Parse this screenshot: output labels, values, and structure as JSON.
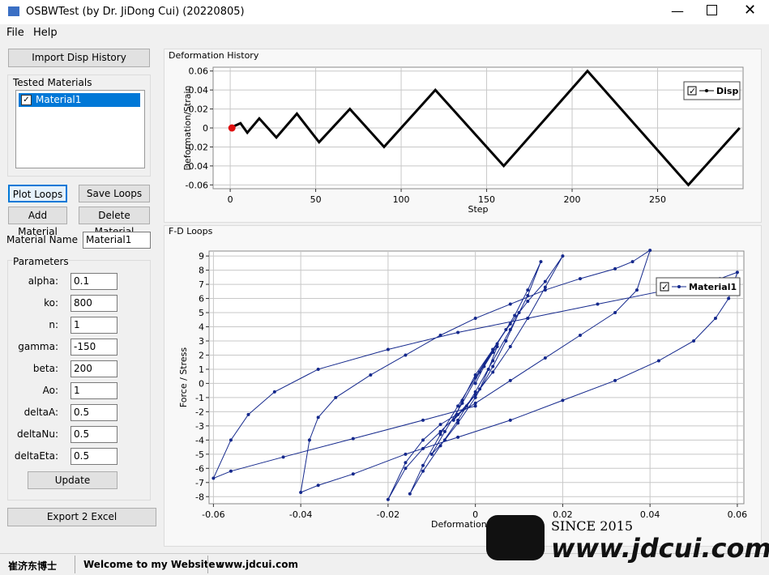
{
  "window": {
    "title": "OSBWTest (by Dr. JiDong Cui) (20220805)"
  },
  "menu": [
    "File",
    "Help"
  ],
  "left": {
    "import_button": "Import Disp History",
    "tested_materials": {
      "title": "Tested Materials",
      "items": [
        "Material1"
      ]
    },
    "buttons": [
      "Plot Loops",
      "Save Loops",
      "Add Material",
      "Delete Material"
    ],
    "material_name": {
      "label": "Material Name",
      "value": "Material1"
    },
    "parameters": {
      "title": "Parameters",
      "fields": [
        {
          "label": "alpha:",
          "value": "0.1"
        },
        {
          "label": "ko:",
          "value": "800"
        },
        {
          "label": "n:",
          "value": "1"
        },
        {
          "label": "gamma:",
          "value": "-150"
        },
        {
          "label": "beta:",
          "value": "200"
        },
        {
          "label": "Ao:",
          "value": "1"
        },
        {
          "label": "deltaA:",
          "value": "0.5"
        },
        {
          "label": "deltaNu:",
          "value": "0.5"
        },
        {
          "label": "deltaEta:",
          "value": "0.5"
        }
      ]
    },
    "update_button": "Update",
    "export_button": "Export 2 Excel"
  },
  "charts": [
    {
      "type": "line",
      "title": "Deformation History",
      "xlabel": "Step",
      "ylabel": "Deformation/Strain",
      "xlim": [
        -10,
        300
      ],
      "ylim": [
        -0.064,
        0.064
      ],
      "xticks": [
        0,
        50,
        100,
        150,
        200,
        250
      ],
      "yticks": [
        0.06,
        0.04,
        0.02,
        0,
        -0.02,
        -0.04,
        -0.06
      ],
      "grid": true,
      "legend": "upper right",
      "series": [
        {
          "name": "Disp",
          "color": "#000000",
          "x": [
            0,
            6,
            10,
            17,
            27,
            39,
            52,
            70,
            90,
            120,
            160,
            209,
            268,
            298
          ],
          "y": [
            0,
            0.005,
            -0.005,
            0.01,
            -0.01,
            0.015,
            -0.015,
            0.02,
            -0.02,
            0.04,
            -0.04,
            0.06,
            -0.06,
            0
          ]
        }
      ],
      "current": {
        "x": 1,
        "y": 0,
        "color": "#e01010"
      }
    },
    {
      "type": "line",
      "title": "F-D Loops",
      "xlabel": "Deformation / Strain",
      "ylabel": "Force  /  Stress",
      "xlim": [
        -0.061,
        0.0615
      ],
      "ylim": [
        -8.5,
        9.35
      ],
      "xticks": [
        -0.06,
        -0.04,
        -0.02,
        0,
        0.02,
        0.04,
        0.06
      ],
      "yticks": [
        9,
        8,
        7,
        6,
        5,
        4,
        3,
        2,
        1,
        0,
        -1,
        -2,
        -3,
        -4,
        -5,
        -6,
        -7,
        -8
      ],
      "grid": true,
      "legend": "upper right",
      "series": [
        {
          "name": "Material1",
          "color": "#14288c",
          "x": [
            0,
            0.002,
            0.004,
            0.005,
            0.003,
            0.001,
            -0.002,
            -0.005,
            -0.003,
            0,
            0.004,
            0.007,
            0.01,
            0.007,
            0.004,
            0,
            -0.004,
            -0.007,
            -0.01,
            -0.007,
            -0.003,
            0.001,
            0.005,
            0.009,
            0.012,
            0.015,
            0.012,
            0.008,
            0.004,
            0,
            -0.004,
            -0.008,
            -0.012,
            -0.015,
            -0.012,
            -0.008,
            -0.004,
            0,
            0.004,
            0.008,
            0.012,
            0.016,
            0.02,
            0.016,
            0.012,
            0.008,
            0.004,
            0,
            -0.004,
            -0.008,
            -0.012,
            -0.016,
            -0.02,
            -0.016,
            -0.012,
            -0.008,
            0,
            0.008,
            0.016,
            0.024,
            0.032,
            0.037,
            0.04,
            0.036,
            0.032,
            0.024,
            0.016,
            0.008,
            0,
            -0.008,
            -0.016,
            -0.024,
            -0.032,
            -0.036,
            -0.038,
            -0.04,
            -0.036,
            -0.028,
            -0.016,
            -0.004,
            0.008,
            0.02,
            0.032,
            0.042,
            0.05,
            0.055,
            0.058,
            0.06,
            0.056,
            0.044,
            0.028,
            0.012,
            -0.004,
            -0.02,
            -0.036,
            -0.046,
            -0.052,
            -0.056,
            -0.06,
            -0.056,
            -0.044,
            -0.028,
            -0.012,
            0
          ],
          "y": [
            0,
            1.2,
            2.2,
            2.6,
            1.0,
            -0.4,
            -1.6,
            -2.6,
            -1.2,
            0.6,
            2.4,
            3.8,
            5.0,
            3.0,
            1.2,
            -1.0,
            -2.8,
            -4.0,
            -5.0,
            -3.4,
            -1.4,
            0.8,
            2.8,
            4.8,
            6.6,
            8.6,
            6.2,
            3.8,
            1.6,
            -0.6,
            -2.6,
            -4.4,
            -6.2,
            -7.8,
            -5.8,
            -3.6,
            -1.6,
            0.4,
            2.4,
            4.2,
            5.8,
            7.2,
            9.0,
            6.8,
            4.6,
            2.6,
            0.8,
            -0.8,
            -2.2,
            -3.4,
            -4.6,
            -6.0,
            -8.2,
            -5.6,
            -4.0,
            -2.9,
            -1.4,
            0.2,
            1.8,
            3.4,
            5.0,
            6.6,
            9.4,
            8.6,
            8.1,
            7.4,
            6.6,
            5.6,
            4.6,
            3.4,
            2.0,
            0.6,
            -1.0,
            -2.4,
            -4.0,
            -7.7,
            -7.2,
            -6.4,
            -5.0,
            -3.8,
            -2.6,
            -1.2,
            0.2,
            1.6,
            3.0,
            4.6,
            6.0,
            7.85,
            7.4,
            6.6,
            5.6,
            4.6,
            3.6,
            2.4,
            1.0,
            -0.6,
            -2.2,
            -4.0,
            -6.7,
            -6.2,
            -5.2,
            -3.9,
            -2.6,
            -1.6
          ]
        }
      ]
    }
  ],
  "status": [
    "崔济东博士",
    "Welcome to my Website :",
    "www.jdcui.com"
  ],
  "watermark": {
    "since": "SINCE 2015",
    "site": "www.jdcui.com"
  }
}
